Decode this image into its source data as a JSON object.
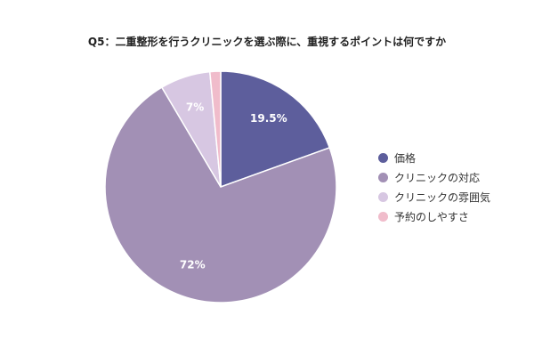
{
  "chart_data": {
    "type": "pie",
    "title": "Q5：二重整形を行うクリニックを選ぶ際に、重視するポイントは何ですか",
    "categories": [
      "価格",
      "クリニックの対応",
      "クリニックの雰囲気",
      "予約のしやすさ"
    ],
    "values": [
      19.5,
      72,
      7,
      1.5
    ],
    "data_labels": [
      "19.5%",
      "72%",
      "7%",
      ""
    ],
    "colors": [
      "#5d5e9c",
      "#a290b5",
      "#d7c7e2",
      "#f0bccb"
    ],
    "legend_position": "right"
  }
}
